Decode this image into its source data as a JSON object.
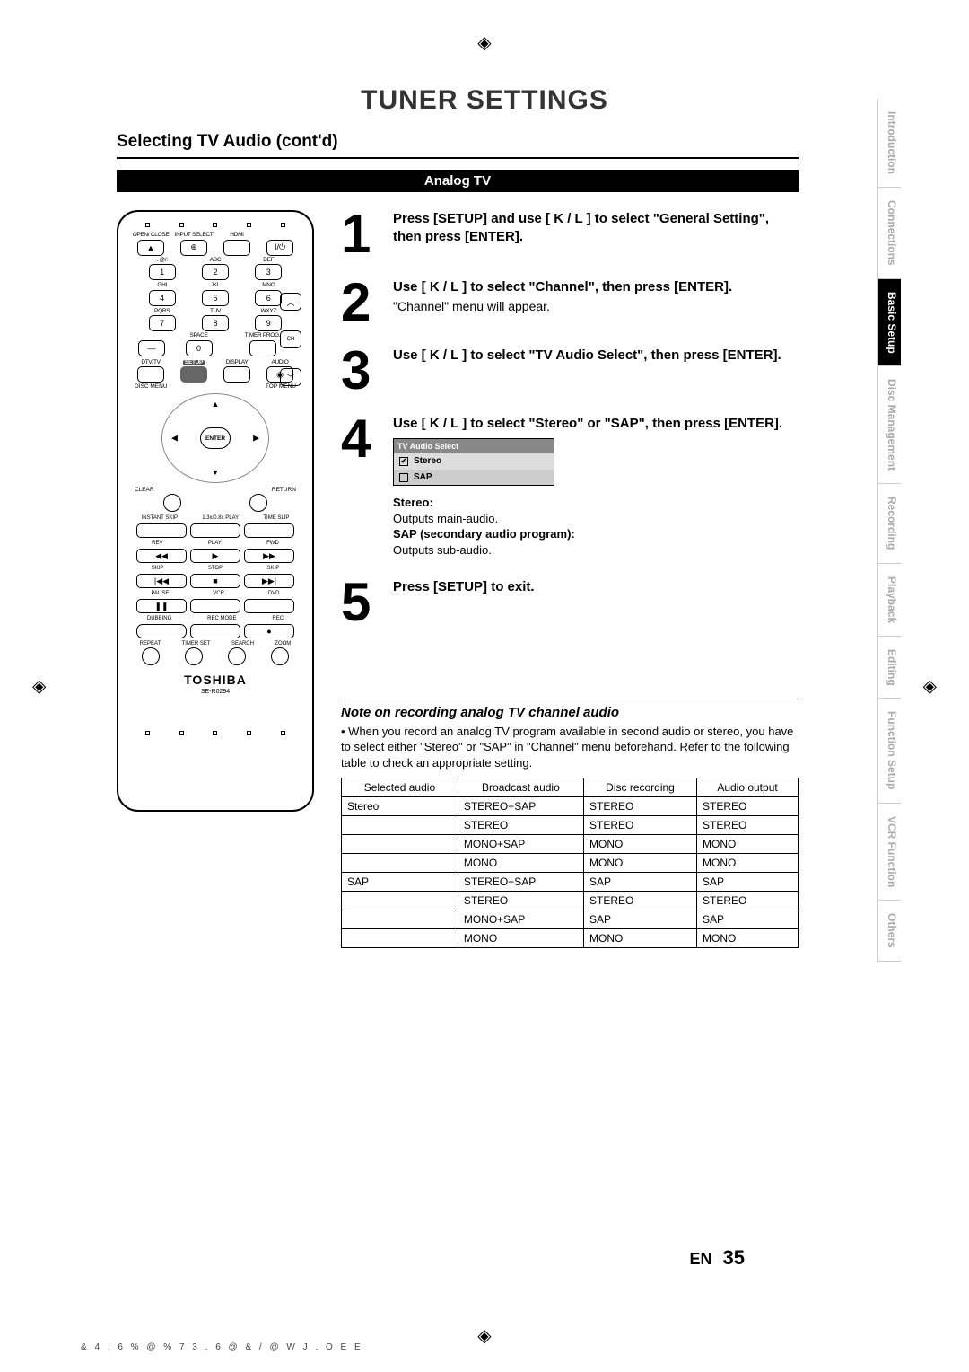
{
  "page": {
    "title": "TUNER SETTINGS",
    "section": "Selecting TV Audio (cont'd)",
    "banner": "Analog TV",
    "lang": "EN",
    "number": "35",
    "footer_code": "& 4 , 6 % @ % 7 3   , 6 @ & / @ W   J . O E E"
  },
  "tabs": [
    {
      "label": "Introduction",
      "active": false
    },
    {
      "label": "Connections",
      "active": false
    },
    {
      "label": "Basic Setup",
      "active": true
    },
    {
      "label": "Disc Management",
      "active": false
    },
    {
      "label": "Recording",
      "active": false
    },
    {
      "label": "Playback",
      "active": false
    },
    {
      "label": "Editing",
      "active": false
    },
    {
      "label": "Function Setup",
      "active": false
    },
    {
      "label": "VCR Function",
      "active": false
    },
    {
      "label": "Others",
      "active": false
    }
  ],
  "remote": {
    "brand": "TOSHIBA",
    "model": "SE-R0294",
    "row1": [
      "OPEN/ CLOSE",
      "INPUT SELECT",
      "HDMI",
      ""
    ],
    "numlabels": [
      ". @/:",
      "ABC",
      "DEF",
      "GHI",
      "JKL",
      "MNO",
      "PQRS",
      "TUV",
      "WXYZ"
    ],
    "nums": [
      "1",
      "2",
      "3",
      "4",
      "5",
      "6",
      "7",
      "8",
      "9"
    ],
    "space": "SPACE",
    "zero": "0",
    "timer": "TIMER PROG.",
    "row3": [
      "DTV/TV",
      "SETUP",
      "DISPLAY",
      "AUDIO"
    ],
    "disc_menu": "DISC MENU",
    "top_menu": "TOP MENU",
    "enter": "ENTER",
    "clear": "CLEAR",
    "return": "RETURN",
    "row_trick": [
      "INSTANT SKIP",
      "1.3x/0.8x PLAY",
      "TIME SLIP"
    ],
    "row_t1": [
      "REV",
      "PLAY",
      "FWD"
    ],
    "row_t2": [
      "SKIP",
      "STOP",
      "SKIP"
    ],
    "row_t3": [
      "PAUSE",
      "VCR",
      "DVD"
    ],
    "row_t4": [
      "DUBBING",
      "REC MODE",
      "REC"
    ],
    "row_t5": [
      "REPEAT",
      "TIMER SET",
      "SEARCH",
      "ZOOM"
    ]
  },
  "steps": [
    {
      "n": "1",
      "bold": "Press [SETUP] and use [ K / L ] to select \"General Setting\", then press [ENTER].",
      "sub": ""
    },
    {
      "n": "2",
      "bold": "Use [ K / L ] to select \"Channel\", then press [ENTER].",
      "sub": "\"Channel\" menu will appear."
    },
    {
      "n": "3",
      "bold": "Use [ K / L ] to select \"TV Audio Select\", then press [ENTER].",
      "sub": ""
    },
    {
      "n": "4",
      "bold": "Use [ K / L ] to select \"Stereo\" or \"SAP\", then press [ENTER].",
      "sub": ""
    },
    {
      "n": "5",
      "bold": "Press [SETUP] to exit.",
      "sub": ""
    }
  ],
  "menu": {
    "header": "TV Audio Select",
    "opts": [
      {
        "label": "Stereo",
        "checked": true
      },
      {
        "label": "SAP",
        "checked": false
      }
    ]
  },
  "defs": {
    "stereo_t": "Stereo:",
    "stereo": "Outputs main-audio.",
    "sap_t": "SAP (secondary audio program):",
    "sap": "Outputs sub-audio."
  },
  "note": {
    "title": "Note on recording analog TV channel audio",
    "text": "When you record an analog TV program available in second audio or stereo, you have to select either \"Stereo\" or \"SAP\" in \"Channel\" menu beforehand. Refer to the following table to check an appropriate setting."
  },
  "table": {
    "headers": [
      "Selected audio",
      "Broadcast audio",
      "Disc recording",
      "Audio output"
    ],
    "rows": [
      [
        "Stereo",
        "STEREO+SAP",
        "STEREO",
        "STEREO"
      ],
      [
        "",
        "STEREO",
        "STEREO",
        "STEREO"
      ],
      [
        "",
        "MONO+SAP",
        "MONO",
        "MONO"
      ],
      [
        "",
        "MONO",
        "MONO",
        "MONO"
      ],
      [
        "SAP",
        "STEREO+SAP",
        "SAP",
        "SAP"
      ],
      [
        "",
        "STEREO",
        "STEREO",
        "STEREO"
      ],
      [
        "",
        "MONO+SAP",
        "SAP",
        "SAP"
      ],
      [
        "",
        "MONO",
        "MONO",
        "MONO"
      ]
    ]
  }
}
